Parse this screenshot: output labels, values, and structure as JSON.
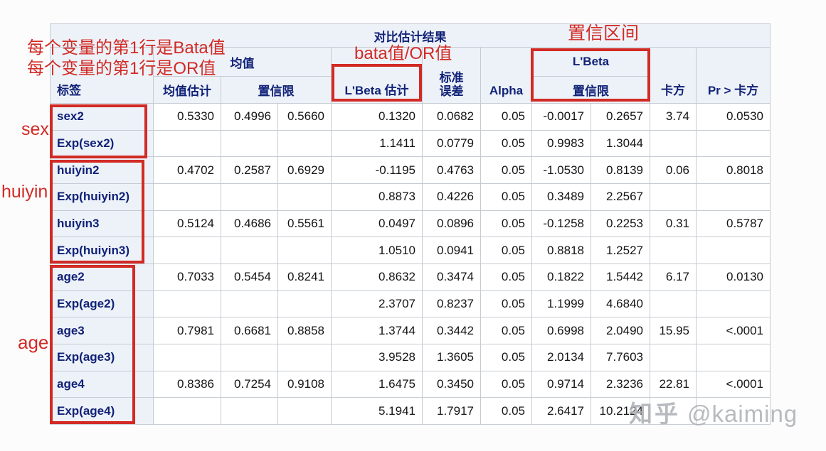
{
  "colors": {
    "accent_red": "#d22a24",
    "header_text": "#112277",
    "header_bg": "#edf2f9",
    "border": "#c6cad2",
    "watermark": "#aeb1b6"
  },
  "annotations": {
    "line1": "每个变量的第1行是Bata值",
    "line2": "每个变量的第1行是OR值",
    "bata_or": "bata值/OR值",
    "conf_interval": "置信区间",
    "group_sex": "sex",
    "group_huiyin": "huiyin",
    "group_age": "age"
  },
  "watermark": {
    "brand": "知乎",
    "user": "@kaiming"
  },
  "table": {
    "title": "对比估计结果",
    "headers": {
      "label": "标签",
      "mean_group": "均值",
      "mean_estimate": "均值估计",
      "confidence_limits": "置信限",
      "lbeta_estimate": "L'Beta 估计",
      "std_error_line1": "标准",
      "std_error_line2": "误差",
      "alpha": "Alpha",
      "lbeta_group": "L'Beta",
      "lbeta_confidence_limits": "置信限",
      "chi_square": "卡方",
      "pr_chi_square": "Pr > 卡方"
    },
    "rows": [
      {
        "label": "sex2",
        "mean": "0.5330",
        "mean_cl_low": "0.4996",
        "mean_cl_high": "0.5660",
        "lbeta": "0.1320",
        "stderr": "0.0682",
        "alpha": "0.05",
        "cl_low": "-0.0017",
        "cl_high": "0.2657",
        "chisq": "3.74",
        "pr": "0.0530"
      },
      {
        "label": "Exp(sex2)",
        "mean": "",
        "mean_cl_low": "",
        "mean_cl_high": "",
        "lbeta": "1.1411",
        "stderr": "0.0779",
        "alpha": "0.05",
        "cl_low": "0.9983",
        "cl_high": "1.3044",
        "chisq": "",
        "pr": ""
      },
      {
        "label": "huiyin2",
        "mean": "0.4702",
        "mean_cl_low": "0.2587",
        "mean_cl_high": "0.6929",
        "lbeta": "-0.1195",
        "stderr": "0.4763",
        "alpha": "0.05",
        "cl_low": "-1.0530",
        "cl_high": "0.8139",
        "chisq": "0.06",
        "pr": "0.8018"
      },
      {
        "label": "Exp(huiyin2)",
        "mean": "",
        "mean_cl_low": "",
        "mean_cl_high": "",
        "lbeta": "0.8873",
        "stderr": "0.4226",
        "alpha": "0.05",
        "cl_low": "0.3489",
        "cl_high": "2.2567",
        "chisq": "",
        "pr": ""
      },
      {
        "label": "huiyin3",
        "mean": "0.5124",
        "mean_cl_low": "0.4686",
        "mean_cl_high": "0.5561",
        "lbeta": "0.0497",
        "stderr": "0.0896",
        "alpha": "0.05",
        "cl_low": "-0.1258",
        "cl_high": "0.2253",
        "chisq": "0.31",
        "pr": "0.5787"
      },
      {
        "label": "Exp(huiyin3)",
        "mean": "",
        "mean_cl_low": "",
        "mean_cl_high": "",
        "lbeta": "1.0510",
        "stderr": "0.0941",
        "alpha": "0.05",
        "cl_low": "0.8818",
        "cl_high": "1.2527",
        "chisq": "",
        "pr": ""
      },
      {
        "label": "age2",
        "mean": "0.7033",
        "mean_cl_low": "0.5454",
        "mean_cl_high": "0.8241",
        "lbeta": "0.8632",
        "stderr": "0.3474",
        "alpha": "0.05",
        "cl_low": "0.1822",
        "cl_high": "1.5442",
        "chisq": "6.17",
        "pr": "0.0130"
      },
      {
        "label": "Exp(age2)",
        "mean": "",
        "mean_cl_low": "",
        "mean_cl_high": "",
        "lbeta": "2.3707",
        "stderr": "0.8237",
        "alpha": "0.05",
        "cl_low": "1.1999",
        "cl_high": "4.6840",
        "chisq": "",
        "pr": ""
      },
      {
        "label": "age3",
        "mean": "0.7981",
        "mean_cl_low": "0.6681",
        "mean_cl_high": "0.8858",
        "lbeta": "1.3744",
        "stderr": "0.3442",
        "alpha": "0.05",
        "cl_low": "0.6998",
        "cl_high": "2.0490",
        "chisq": "15.95",
        "pr": "<.0001"
      },
      {
        "label": "Exp(age3)",
        "mean": "",
        "mean_cl_low": "",
        "mean_cl_high": "",
        "lbeta": "3.9528",
        "stderr": "1.3605",
        "alpha": "0.05",
        "cl_low": "2.0134",
        "cl_high": "7.7603",
        "chisq": "",
        "pr": ""
      },
      {
        "label": "age4",
        "mean": "0.8386",
        "mean_cl_low": "0.7254",
        "mean_cl_high": "0.9108",
        "lbeta": "1.6475",
        "stderr": "0.3450",
        "alpha": "0.05",
        "cl_low": "0.9714",
        "cl_high": "2.3236",
        "chisq": "22.81",
        "pr": "<.0001"
      },
      {
        "label": "Exp(age4)",
        "mean": "",
        "mean_cl_low": "",
        "mean_cl_high": "",
        "lbeta": "5.1941",
        "stderr": "1.7917",
        "alpha": "0.05",
        "cl_low": "2.6417",
        "cl_high": "10.2124",
        "chisq": "",
        "pr": ""
      }
    ]
  }
}
